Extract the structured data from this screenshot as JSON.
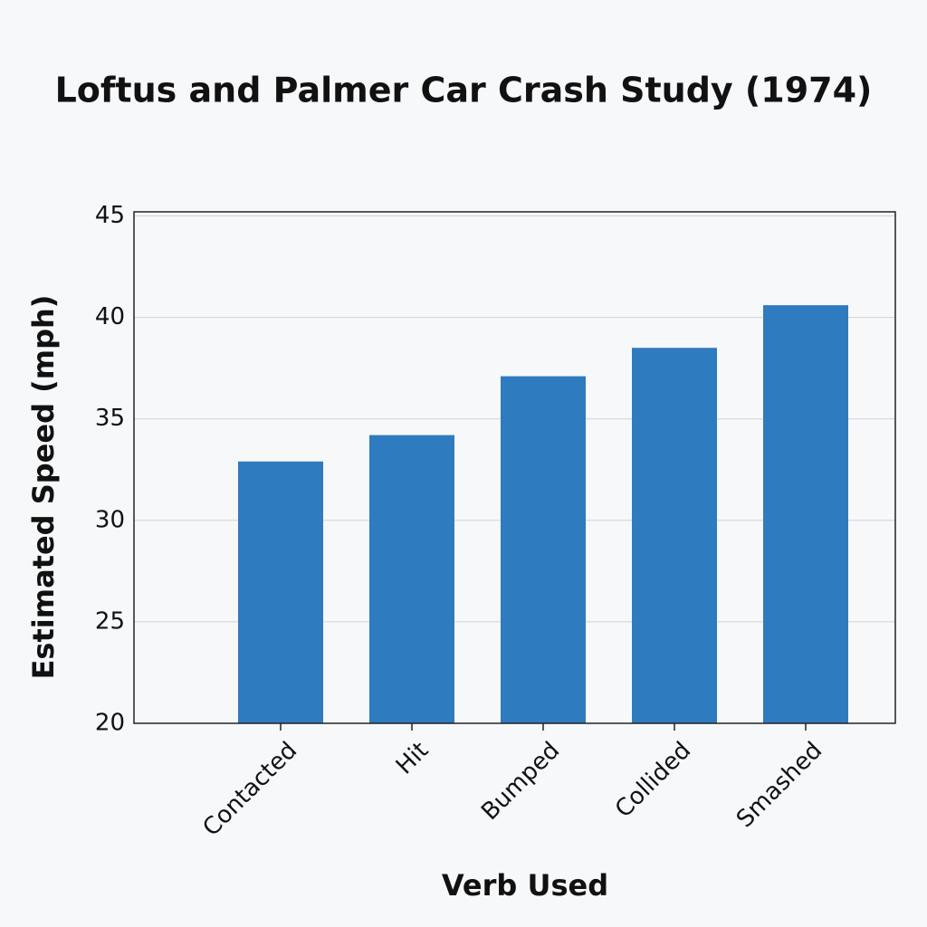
{
  "chart_data": {
    "type": "bar",
    "title": "Loftus and Palmer Car Crash Study (1974)",
    "x_label": "Verb Used",
    "y_label": "Estimated Speed (mph)",
    "categories": [
      "Contacted",
      "Hit",
      "Bumped",
      "Collided",
      "Smashed"
    ],
    "values": [
      32.9,
      34.2,
      37.1,
      38.5,
      40.6
    ],
    "color": "#2f7bbf",
    "ylim": [
      20,
      45.2
    ],
    "yticks": [
      20,
      25,
      30,
      35,
      40,
      45
    ],
    "grid": true
  }
}
